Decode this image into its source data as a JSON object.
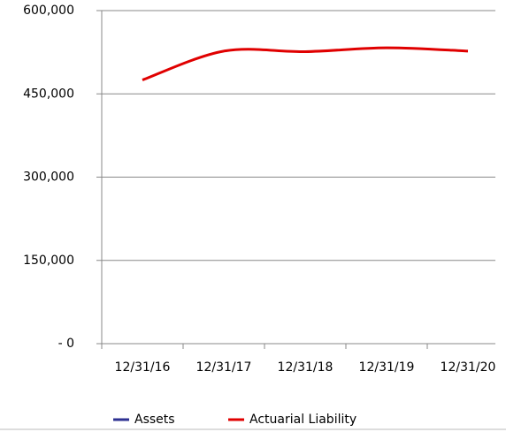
{
  "chart_data": {
    "type": "line",
    "categories": [
      "12/31/16",
      "12/31/17",
      "12/31/18",
      "12/31/19",
      "12/31/20"
    ],
    "series": [
      {
        "name": "Assets",
        "color": "#2e3192",
        "values": [
          null,
          null,
          null,
          null,
          null
        ]
      },
      {
        "name": "Actuarial Liability",
        "color": "#e00000",
        "values": [
          475000,
          527000,
          526000,
          533000,
          527000
        ]
      }
    ],
    "ylim": [
      0,
      600000
    ],
    "yticks": [
      {
        "value": 0,
        "label": "- 0"
      },
      {
        "value": 150000,
        "label": "150,000"
      },
      {
        "value": 300000,
        "label": "300,000"
      },
      {
        "value": 450000,
        "label": "450,000"
      },
      {
        "value": 600000,
        "label": "600,000"
      }
    ],
    "grid": true
  }
}
